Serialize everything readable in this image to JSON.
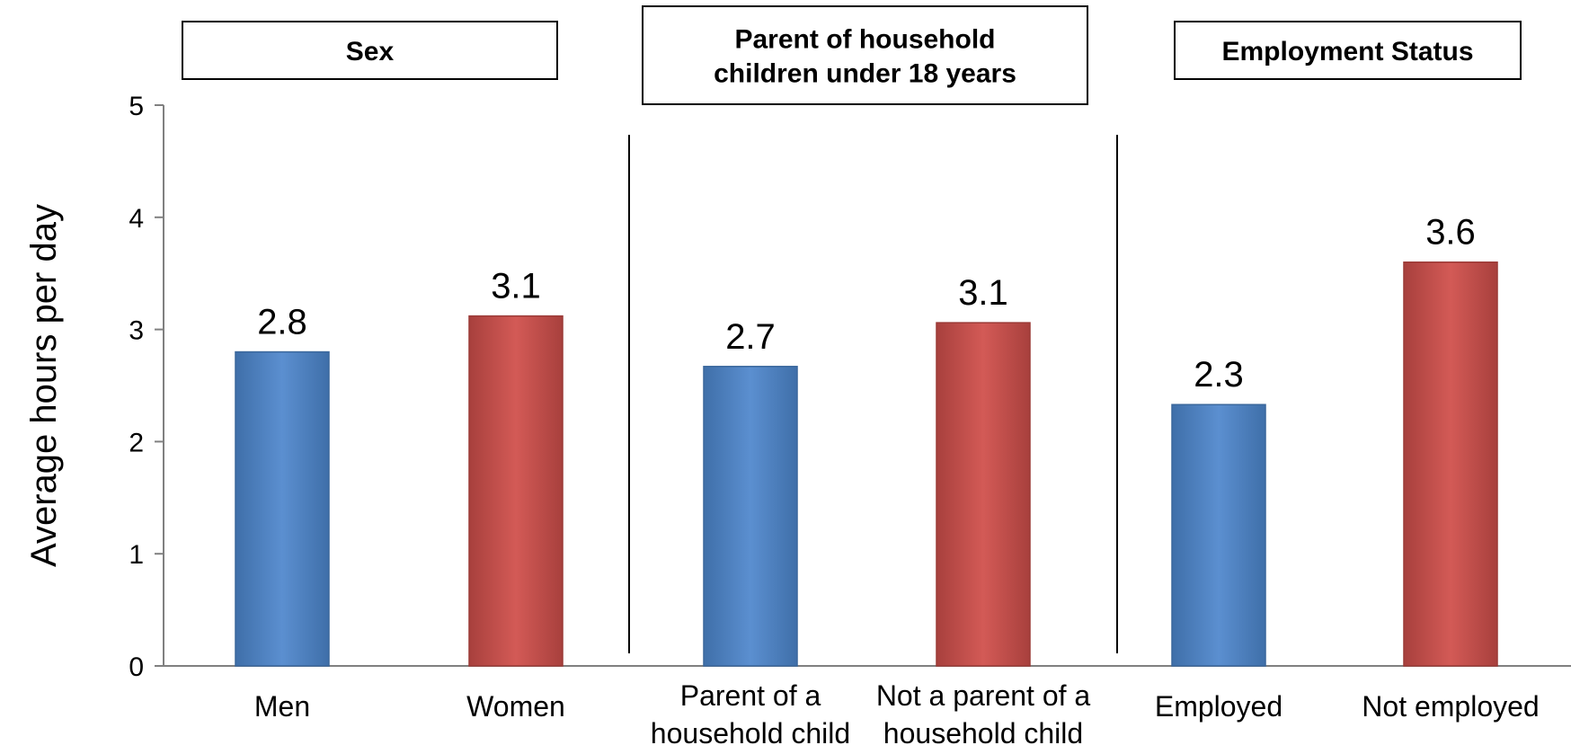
{
  "chart_data": {
    "type": "bar",
    "ylabel": "Average hours per day",
    "ylim": [
      0,
      5
    ],
    "yticks": [
      "0",
      "1",
      "2",
      "3",
      "4",
      "5"
    ],
    "grid": false,
    "groups": [
      {
        "title": [
          "Sex"
        ],
        "categories": [
          0,
          1
        ]
      },
      {
        "title": [
          "Parent of household",
          "children under 18 years"
        ],
        "categories": [
          2,
          3
        ]
      },
      {
        "title": [
          "Employment Status"
        ],
        "categories": [
          4,
          5
        ]
      }
    ],
    "categories": [
      [
        "Men"
      ],
      [
        "Women"
      ],
      [
        "Parent of a",
        "household child"
      ],
      [
        "Not a parent of a",
        "household child"
      ],
      [
        "Employed"
      ],
      [
        "Not employed"
      ]
    ],
    "values": [
      2.8,
      3.12,
      2.67,
      3.06,
      2.33,
      3.6
    ],
    "value_labels": [
      "2.8",
      "3.1",
      "2.7",
      "3.1",
      "2.3",
      "3.6"
    ],
    "colors": [
      "#4f81bd",
      "#c0504d",
      "#4f81bd",
      "#c0504d",
      "#4f81bd",
      "#c0504d"
    ]
  }
}
